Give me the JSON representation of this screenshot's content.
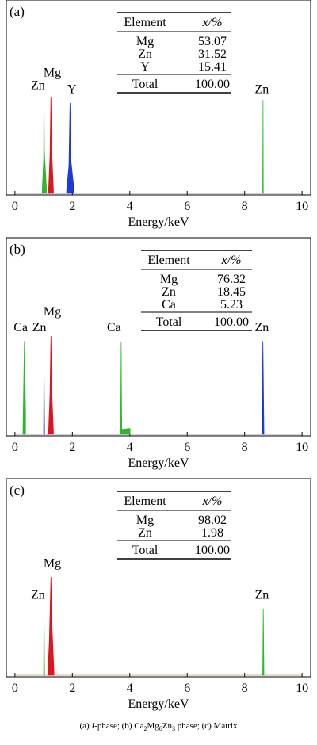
{
  "chart_data": [
    {
      "type": "line",
      "panel_label": "(a)",
      "xlabel": "Energy/keV",
      "xlim": [
        -0.3,
        10.3
      ],
      "xticks": [
        0,
        2,
        4,
        6,
        8,
        10
      ],
      "ylim": [
        0,
        1
      ],
      "table": {
        "header": [
          "Element",
          "x/%"
        ],
        "rows": [
          [
            "Mg",
            "53.07"
          ],
          [
            "Zn",
            "31.52"
          ],
          [
            "Y",
            "15.41"
          ]
        ],
        "total": [
          "Total",
          "100.00"
        ]
      },
      "series": [
        {
          "color": "#2db82d",
          "points": [
            [
              0.95,
              0.03
            ],
            [
              1.0,
              0.35
            ],
            [
              1.012,
              1.0
            ],
            [
              1.025,
              0.42
            ],
            [
              1.1,
              0.04
            ],
            [
              8.63,
              0.07
            ],
            [
              8.64,
              0.95
            ],
            [
              8.65,
              0.08
            ],
            [
              9.57,
              0.14
            ]
          ]
        },
        {
          "color": "#e0141e",
          "points": [
            [
              1.17,
              0.03
            ],
            [
              1.22,
              0.38
            ],
            [
              1.253,
              0.98
            ],
            [
              1.285,
              0.4
            ],
            [
              1.34,
              0.03
            ]
          ]
        },
        {
          "color": "#1e3ad6",
          "points": [
            [
              1.8,
              0.03
            ],
            [
              1.88,
              0.28
            ],
            [
              1.92,
              0.92
            ],
            [
              1.95,
              0.33
            ],
            [
              2.06,
              0.03
            ]
          ]
        }
      ],
      "peak_labels": [
        {
          "text": "Zn",
          "x": 0.8,
          "y": 1.06
        },
        {
          "text": "Mg",
          "x": 1.3,
          "y": 1.19
        },
        {
          "text": "Y",
          "x": 1.98,
          "y": 1.02
        },
        {
          "text": "Zn",
          "x": 8.6,
          "y": 1.02
        }
      ]
    },
    {
      "type": "line",
      "panel_label": "(b)",
      "xlabel": "Energy/keV",
      "xlim": [
        -0.3,
        10.3
      ],
      "xticks": [
        0,
        2,
        4,
        6,
        8,
        10
      ],
      "ylim": [
        0,
        1
      ],
      "table": {
        "header": [
          "Element",
          "x/%"
        ],
        "rows": [
          [
            "Mg",
            "76.32"
          ],
          [
            "Zn",
            "18.45"
          ],
          [
            "Ca",
            "5.23"
          ]
        ],
        "total": [
          "Total",
          "100.00"
        ]
      },
      "series": [
        {
          "color": "#2db82d",
          "points": [
            [
              0.28,
              0.03
            ],
            [
              0.33,
              0.95
            ],
            [
              0.37,
              0.2
            ],
            [
              3.68,
              0.02
            ],
            [
              3.7,
              0.94
            ],
            [
              3.72,
              0.05
            ],
            [
              4.01,
              0.06
            ],
            [
              9.55,
              0.11
            ]
          ]
        },
        {
          "color": "#e0141e",
          "points": [
            [
              1.17,
              0.03
            ],
            [
              1.22,
              0.4
            ],
            [
              1.253,
              1.0
            ],
            [
              1.285,
              0.42
            ],
            [
              1.34,
              0.03
            ]
          ]
        },
        {
          "color": "#1e3ad6",
          "points": [
            [
              1.0,
              0.03
            ],
            [
              1.01,
              0.72
            ],
            [
              1.03,
              0.03
            ],
            [
              8.6,
              0.02
            ],
            [
              8.635,
              0.95
            ],
            [
              8.67,
              0.02
            ]
          ]
        }
      ],
      "peak_labels": [
        {
          "text": "Ca",
          "x": 0.2,
          "y": 1.05
        },
        {
          "text": "Zn",
          "x": 0.85,
          "y": 1.05
        },
        {
          "text": "Mg",
          "x": 1.3,
          "y": 1.21
        },
        {
          "text": "Ca",
          "x": 3.45,
          "y": 1.05
        },
        {
          "text": "Zn",
          "x": 8.6,
          "y": 1.05
        }
      ]
    },
    {
      "type": "line",
      "panel_label": "(c)",
      "xlabel": "Energy/keV",
      "xlim": [
        -0.3,
        10.3
      ],
      "xticks": [
        0,
        2,
        4,
        6,
        8,
        10
      ],
      "ylim": [
        0,
        1
      ],
      "table": {
        "header": [
          "Element",
          "x/%"
        ],
        "rows": [
          [
            "Mg",
            "98.02"
          ],
          [
            "Zn",
            "1.98"
          ]
        ],
        "total": [
          "Total",
          "100.00"
        ]
      },
      "series": [
        {
          "color": "#2db82d",
          "points": [
            [
              1.0,
              0.02
            ],
            [
              1.012,
              0.7
            ],
            [
              1.03,
              0.02
            ],
            [
              8.63,
              0.03
            ],
            [
              8.65,
              0.68
            ],
            [
              8.67,
              0.03
            ],
            [
              9.55,
              0.1
            ]
          ]
        },
        {
          "color": "#e0141e",
          "points": [
            [
              1.15,
              0.03
            ],
            [
              1.2,
              0.35
            ],
            [
              1.253,
              1.0
            ],
            [
              1.29,
              0.5
            ],
            [
              1.36,
              0.03
            ]
          ]
        }
      ],
      "peak_labels": [
        {
          "text": "Zn",
          "x": 0.8,
          "y": 0.78
        },
        {
          "text": "Mg",
          "x": 1.3,
          "y": 1.1
        },
        {
          "text": "Zn",
          "x": 8.6,
          "y": 0.78
        }
      ]
    }
  ],
  "caption": {
    "part1": "(a) ",
    "italic": "I",
    "part2": "-phase; (b) Ca",
    "sub1": "2",
    "part3": "Mg",
    "sub2": "6",
    "part4": "Zn",
    "sub3": "3",
    "part5": " phase; (c) Matrix"
  }
}
